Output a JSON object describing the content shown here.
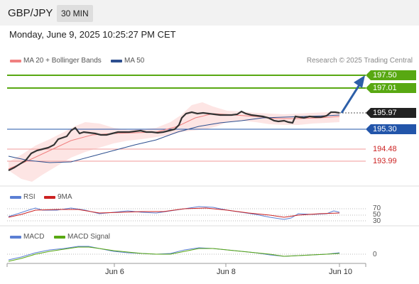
{
  "header": {
    "symbol": "GBP/JPY",
    "timeframe": "30 MIN"
  },
  "datetime": "Monday, June 9, 2025 10:25:27 PM CET",
  "legend": {
    "ma20_label": "MA 20 + Bollinger Bands",
    "ma50_label": "MA 50",
    "credit": "Research © 2025 Trading Central"
  },
  "colors": {
    "resistance": "#58a812",
    "pivot": "#2255aa",
    "support": "#cc2222",
    "ma20": "#f08080",
    "arrow": "#2d5fa8"
  },
  "levels": {
    "r2": "197.50",
    "r1": "197.01",
    "last": "195.97",
    "pivot": "195.30",
    "s1": "194.48",
    "s2": "193.99"
  },
  "rsi_panel": {
    "label": "RSI",
    "ma_label": "9MA",
    "ticks": [
      "70",
      "50",
      "30"
    ]
  },
  "macd_panel": {
    "label": "MACD",
    "signal_label": "MACD Signal",
    "zero_tick": "0"
  },
  "x_axis": {
    "labels": [
      "Jun 6",
      "Jun 8",
      "Jun 10"
    ]
  }
}
